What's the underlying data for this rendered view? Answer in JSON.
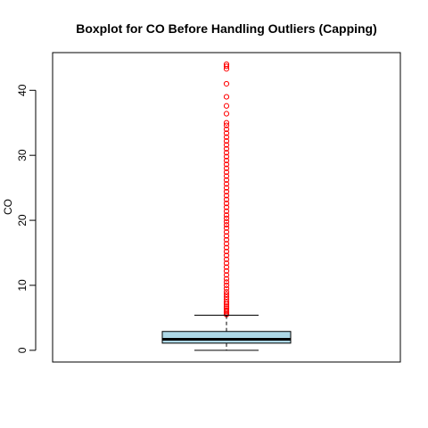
{
  "chart_data": {
    "type": "boxplot",
    "title": "Boxplot for CO Before Handling Outliers (Capping)",
    "xlabel": "",
    "ylabel": "CO",
    "ylim": [
      -1.8,
      45.8
    ],
    "yticks": [
      0,
      10,
      20,
      30,
      40
    ],
    "grid": false,
    "legend": "none",
    "box": {
      "min_whisker": 0.0,
      "q1": 1.1,
      "median": 1.7,
      "q3": 2.9,
      "max_whisker": 5.4
    },
    "outliers_sample": [
      5.5,
      5.6,
      5.8,
      6.0,
      6.2,
      6.5,
      6.8,
      7.1,
      7.4,
      7.8,
      8.2,
      8.6,
      9.0,
      9.5,
      10.0,
      10.5,
      11.0,
      11.6,
      12.2,
      12.8,
      13.4,
      14.0,
      14.6,
      15.2,
      15.8,
      16.4,
      17.0,
      17.6,
      18.2,
      18.8,
      19.3,
      19.8,
      20.3,
      20.8,
      21.4,
      22.0,
      22.6,
      23.2,
      23.8,
      24.4,
      25.0,
      25.6,
      26.2,
      26.8,
      27.4,
      28.0,
      28.6,
      29.2,
      29.8,
      30.4,
      31.0,
      31.6,
      32.2,
      32.8,
      33.4,
      34.0,
      34.6,
      35.0,
      36.4,
      37.6,
      39.0,
      41.0,
      43.3,
      43.7,
      44.0
    ],
    "colors": {
      "box_fill": "#add8e6",
      "outlier": "#ff0000",
      "axis": "#000000"
    }
  }
}
